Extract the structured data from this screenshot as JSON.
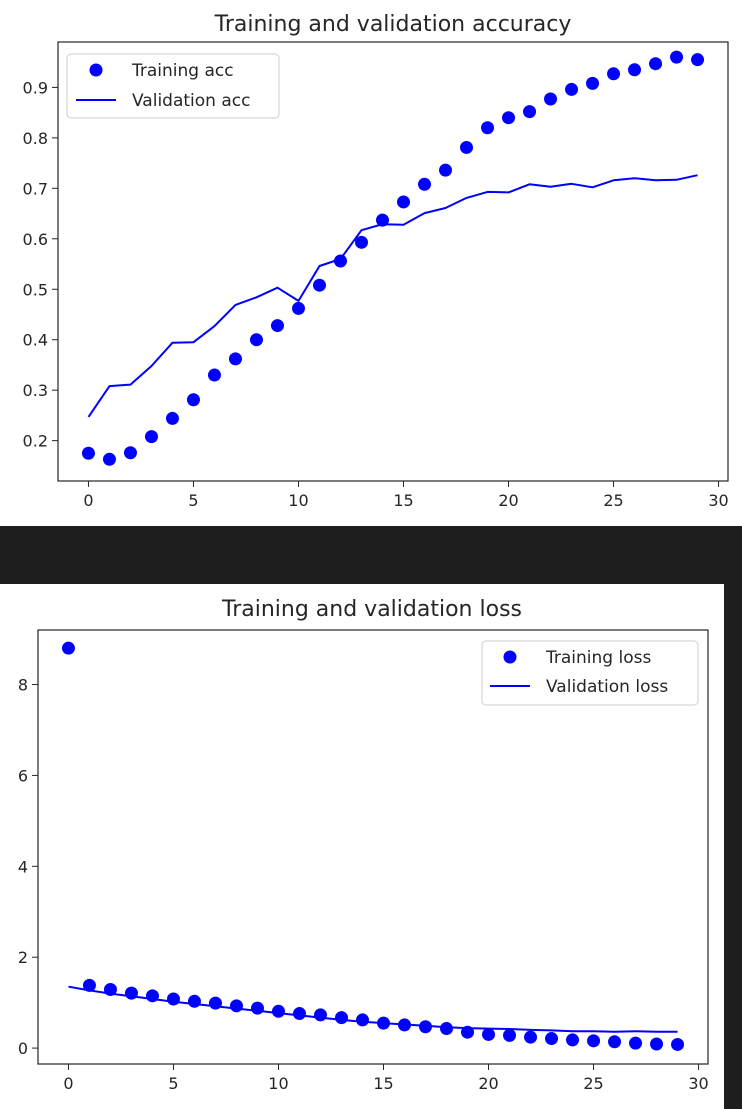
{
  "chart_data": [
    {
      "type": "line",
      "title": "Training and validation accuracy",
      "xlabel": "",
      "ylabel": "",
      "xlim": [
        -1.45,
        30.45
      ],
      "ylim": [
        0.12,
        0.99
      ],
      "xticks": [
        0,
        5,
        10,
        15,
        20,
        25,
        30
      ],
      "yticks": [
        0.2,
        0.3,
        0.4,
        0.5,
        0.6,
        0.7,
        0.8,
        0.9
      ],
      "legend_position": "top-left",
      "grid": false,
      "color": "#0000ff",
      "series": [
        {
          "name": "Training acc",
          "style": "markers",
          "x": [
            0,
            1,
            2,
            3,
            4,
            5,
            6,
            7,
            8,
            9,
            10,
            11,
            12,
            13,
            14,
            15,
            16,
            17,
            18,
            19,
            20,
            21,
            22,
            23,
            24,
            25,
            26,
            27,
            28,
            29
          ],
          "y": [
            0.175,
            0.163,
            0.176,
            0.208,
            0.244,
            0.281,
            0.33,
            0.362,
            0.4,
            0.428,
            0.462,
            0.508,
            0.556,
            0.593,
            0.637,
            0.673,
            0.708,
            0.736,
            0.781,
            0.82,
            0.84,
            0.852,
            0.877,
            0.896,
            0.908,
            0.927,
            0.935,
            0.947,
            0.96,
            0.955
          ]
        },
        {
          "name": "Validation acc",
          "style": "line",
          "x": [
            0,
            1,
            2,
            3,
            4,
            5,
            6,
            7,
            8,
            9,
            10,
            11,
            12,
            13,
            14,
            15,
            16,
            17,
            18,
            19,
            20,
            21,
            22,
            23,
            24,
            25,
            26,
            27,
            28,
            29
          ],
          "y": [
            0.247,
            0.308,
            0.311,
            0.348,
            0.394,
            0.395,
            0.427,
            0.469,
            0.484,
            0.503,
            0.477,
            0.546,
            0.56,
            0.617,
            0.629,
            0.628,
            0.651,
            0.661,
            0.681,
            0.693,
            0.692,
            0.708,
            0.703,
            0.709,
            0.702,
            0.716,
            0.72,
            0.716,
            0.717,
            0.726
          ]
        }
      ]
    },
    {
      "type": "line",
      "title": "Training and validation loss",
      "xlabel": "",
      "ylabel": "",
      "xlim": [
        -1.45,
        30.45
      ],
      "ylim": [
        -0.35,
        9.2
      ],
      "xticks": [
        0,
        5,
        10,
        15,
        20,
        25,
        30
      ],
      "yticks": [
        0,
        2,
        4,
        6,
        8
      ],
      "legend_position": "top-right",
      "grid": false,
      "color": "#0000ff",
      "series": [
        {
          "name": "Training loss",
          "style": "markers",
          "x": [
            0,
            1,
            2,
            3,
            4,
            5,
            6,
            7,
            8,
            9,
            10,
            11,
            12,
            13,
            14,
            15,
            16,
            17,
            18,
            19,
            20,
            21,
            22,
            23,
            24,
            25,
            26,
            27,
            28,
            29
          ],
          "y": [
            8.8,
            1.38,
            1.29,
            1.21,
            1.15,
            1.08,
            1.03,
            0.99,
            0.93,
            0.88,
            0.81,
            0.76,
            0.73,
            0.67,
            0.62,
            0.55,
            0.51,
            0.47,
            0.43,
            0.35,
            0.3,
            0.28,
            0.24,
            0.21,
            0.18,
            0.16,
            0.14,
            0.11,
            0.09,
            0.08
          ]
        },
        {
          "name": "Validation loss",
          "style": "line",
          "x": [
            0,
            1,
            2,
            3,
            4,
            5,
            6,
            7,
            8,
            9,
            10,
            11,
            12,
            13,
            14,
            15,
            16,
            17,
            18,
            19,
            20,
            21,
            22,
            23,
            24,
            25,
            26,
            27,
            28,
            29
          ],
          "y": [
            1.35,
            1.27,
            1.2,
            1.14,
            1.08,
            1.02,
            0.97,
            0.92,
            0.87,
            0.82,
            0.77,
            0.72,
            0.67,
            0.62,
            0.58,
            0.55,
            0.52,
            0.49,
            0.46,
            0.44,
            0.43,
            0.42,
            0.4,
            0.39,
            0.37,
            0.37,
            0.36,
            0.37,
            0.36,
            0.36
          ]
        }
      ]
    }
  ]
}
